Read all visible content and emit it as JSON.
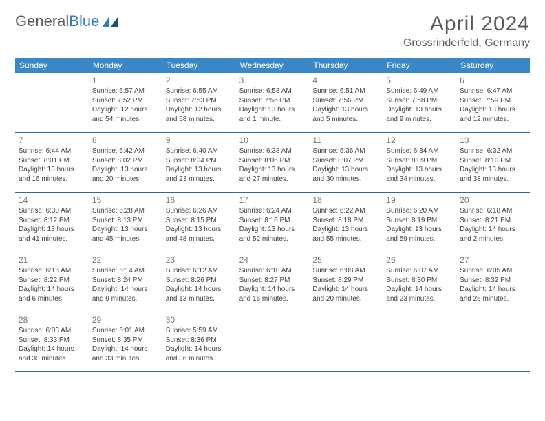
{
  "logo": {
    "text1": "General",
    "text2": "Blue"
  },
  "title": "April 2024",
  "location": "Grossrinderfeld, Germany",
  "colors": {
    "header_bg": "#3a87c8",
    "header_text": "#ffffff",
    "border": "#2a6aa0",
    "body_text": "#444444",
    "daynum": "#777777",
    "title_text": "#5a5a5a",
    "logo_blue": "#2f7ac0"
  },
  "typography": {
    "title_fontsize": 30,
    "location_fontsize": 16,
    "dayhead_fontsize": 12,
    "daynum_fontsize": 12,
    "cell_fontsize": 10
  },
  "day_names": [
    "Sunday",
    "Monday",
    "Tuesday",
    "Wednesday",
    "Thursday",
    "Friday",
    "Saturday"
  ],
  "weeks": [
    [
      null,
      {
        "n": "1",
        "sr": "Sunrise: 6:57 AM",
        "ss": "Sunset: 7:52 PM",
        "dl1": "Daylight: 12 hours",
        "dl2": "and 54 minutes."
      },
      {
        "n": "2",
        "sr": "Sunrise: 6:55 AM",
        "ss": "Sunset: 7:53 PM",
        "dl1": "Daylight: 12 hours",
        "dl2": "and 58 minutes."
      },
      {
        "n": "3",
        "sr": "Sunrise: 6:53 AM",
        "ss": "Sunset: 7:55 PM",
        "dl1": "Daylight: 13 hours",
        "dl2": "and 1 minute."
      },
      {
        "n": "4",
        "sr": "Sunrise: 6:51 AM",
        "ss": "Sunset: 7:56 PM",
        "dl1": "Daylight: 13 hours",
        "dl2": "and 5 minutes."
      },
      {
        "n": "5",
        "sr": "Sunrise: 6:49 AM",
        "ss": "Sunset: 7:58 PM",
        "dl1": "Daylight: 13 hours",
        "dl2": "and 9 minutes."
      },
      {
        "n": "6",
        "sr": "Sunrise: 6:47 AM",
        "ss": "Sunset: 7:59 PM",
        "dl1": "Daylight: 13 hours",
        "dl2": "and 12 minutes."
      }
    ],
    [
      {
        "n": "7",
        "sr": "Sunrise: 6:44 AM",
        "ss": "Sunset: 8:01 PM",
        "dl1": "Daylight: 13 hours",
        "dl2": "and 16 minutes."
      },
      {
        "n": "8",
        "sr": "Sunrise: 6:42 AM",
        "ss": "Sunset: 8:02 PM",
        "dl1": "Daylight: 13 hours",
        "dl2": "and 20 minutes."
      },
      {
        "n": "9",
        "sr": "Sunrise: 6:40 AM",
        "ss": "Sunset: 8:04 PM",
        "dl1": "Daylight: 13 hours",
        "dl2": "and 23 minutes."
      },
      {
        "n": "10",
        "sr": "Sunrise: 6:38 AM",
        "ss": "Sunset: 8:06 PM",
        "dl1": "Daylight: 13 hours",
        "dl2": "and 27 minutes."
      },
      {
        "n": "11",
        "sr": "Sunrise: 6:36 AM",
        "ss": "Sunset: 8:07 PM",
        "dl1": "Daylight: 13 hours",
        "dl2": "and 30 minutes."
      },
      {
        "n": "12",
        "sr": "Sunrise: 6:34 AM",
        "ss": "Sunset: 8:09 PM",
        "dl1": "Daylight: 13 hours",
        "dl2": "and 34 minutes."
      },
      {
        "n": "13",
        "sr": "Sunrise: 6:32 AM",
        "ss": "Sunset: 8:10 PM",
        "dl1": "Daylight: 13 hours",
        "dl2": "and 38 minutes."
      }
    ],
    [
      {
        "n": "14",
        "sr": "Sunrise: 6:30 AM",
        "ss": "Sunset: 8:12 PM",
        "dl1": "Daylight: 13 hours",
        "dl2": "and 41 minutes."
      },
      {
        "n": "15",
        "sr": "Sunrise: 6:28 AM",
        "ss": "Sunset: 8:13 PM",
        "dl1": "Daylight: 13 hours",
        "dl2": "and 45 minutes."
      },
      {
        "n": "16",
        "sr": "Sunrise: 6:26 AM",
        "ss": "Sunset: 8:15 PM",
        "dl1": "Daylight: 13 hours",
        "dl2": "and 48 minutes."
      },
      {
        "n": "17",
        "sr": "Sunrise: 6:24 AM",
        "ss": "Sunset: 8:16 PM",
        "dl1": "Daylight: 13 hours",
        "dl2": "and 52 minutes."
      },
      {
        "n": "18",
        "sr": "Sunrise: 6:22 AM",
        "ss": "Sunset: 8:18 PM",
        "dl1": "Daylight: 13 hours",
        "dl2": "and 55 minutes."
      },
      {
        "n": "19",
        "sr": "Sunrise: 6:20 AM",
        "ss": "Sunset: 8:19 PM",
        "dl1": "Daylight: 13 hours",
        "dl2": "and 59 minutes."
      },
      {
        "n": "20",
        "sr": "Sunrise: 6:18 AM",
        "ss": "Sunset: 8:21 PM",
        "dl1": "Daylight: 14 hours",
        "dl2": "and 2 minutes."
      }
    ],
    [
      {
        "n": "21",
        "sr": "Sunrise: 6:16 AM",
        "ss": "Sunset: 8:22 PM",
        "dl1": "Daylight: 14 hours",
        "dl2": "and 6 minutes."
      },
      {
        "n": "22",
        "sr": "Sunrise: 6:14 AM",
        "ss": "Sunset: 8:24 PM",
        "dl1": "Daylight: 14 hours",
        "dl2": "and 9 minutes."
      },
      {
        "n": "23",
        "sr": "Sunrise: 6:12 AM",
        "ss": "Sunset: 8:26 PM",
        "dl1": "Daylight: 14 hours",
        "dl2": "and 13 minutes."
      },
      {
        "n": "24",
        "sr": "Sunrise: 6:10 AM",
        "ss": "Sunset: 8:27 PM",
        "dl1": "Daylight: 14 hours",
        "dl2": "and 16 minutes."
      },
      {
        "n": "25",
        "sr": "Sunrise: 6:08 AM",
        "ss": "Sunset: 8:29 PM",
        "dl1": "Daylight: 14 hours",
        "dl2": "and 20 minutes."
      },
      {
        "n": "26",
        "sr": "Sunrise: 6:07 AM",
        "ss": "Sunset: 8:30 PM",
        "dl1": "Daylight: 14 hours",
        "dl2": "and 23 minutes."
      },
      {
        "n": "27",
        "sr": "Sunrise: 6:05 AM",
        "ss": "Sunset: 8:32 PM",
        "dl1": "Daylight: 14 hours",
        "dl2": "and 26 minutes."
      }
    ],
    [
      {
        "n": "28",
        "sr": "Sunrise: 6:03 AM",
        "ss": "Sunset: 8:33 PM",
        "dl1": "Daylight: 14 hours",
        "dl2": "and 30 minutes."
      },
      {
        "n": "29",
        "sr": "Sunrise: 6:01 AM",
        "ss": "Sunset: 8:35 PM",
        "dl1": "Daylight: 14 hours",
        "dl2": "and 33 minutes."
      },
      {
        "n": "30",
        "sr": "Sunrise: 5:59 AM",
        "ss": "Sunset: 8:36 PM",
        "dl1": "Daylight: 14 hours",
        "dl2": "and 36 minutes."
      },
      null,
      null,
      null,
      null
    ]
  ]
}
